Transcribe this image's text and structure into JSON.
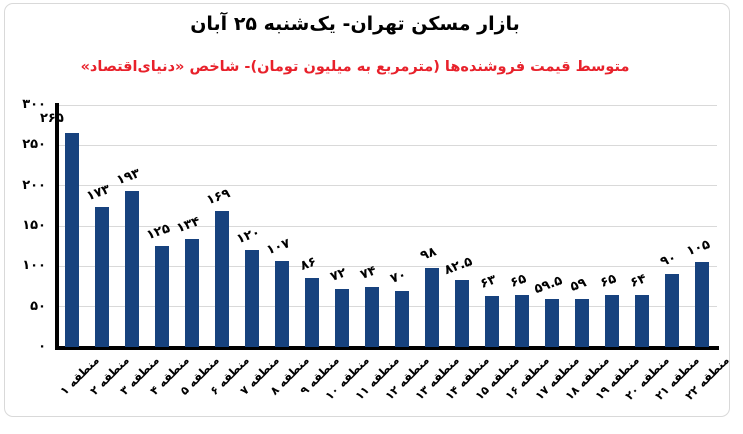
{
  "chart_data": {
    "type": "bar",
    "title": "بازار مسکن تهران- یک‌شنبه ۲۵ آبان",
    "subtitle": "متوسط قیمت فروشنده‌ها (مترمربع به میلیون تومان)- شاخص «دنیای‌اقتصاد»",
    "categories": [
      "منطقه ۱",
      "منطقه ۲",
      "منطقه ۳",
      "منطقه ۴",
      "منطقه ۵",
      "منطقه ۶",
      "منطقه ۷",
      "منطقه ۸",
      "منطقه ۹",
      "منطقه ۱۰",
      "منطقه ۱۱",
      "منطقه ۱۲",
      "منطقه ۱۳",
      "منطقه ۱۴",
      "منطقه ۱۵",
      "منطقه ۱۶",
      "منطقه ۱۷",
      "منطقه ۱۸",
      "منطقه ۱۹",
      "منطقه ۲۰",
      "منطقه ۲۱",
      "منطقه ۲۲"
    ],
    "values": [
      265,
      173,
      193,
      125,
      134,
      169,
      120,
      107,
      86,
      72,
      74,
      70,
      98,
      82.5,
      63,
      65,
      59.5,
      59,
      65,
      64,
      90,
      105
    ],
    "value_labels": [
      "۲۶۵",
      "۱۷۳",
      "۱۹۳",
      "۱۲۵",
      "۱۳۴",
      "۱۶۹",
      "۱۲۰",
      "۱۰۷",
      "۸۶",
      "۷۲",
      "۷۴",
      "۷۰",
      "۹۸",
      "۸۲.۵",
      "۶۳",
      "۶۵",
      "۵۹.۵",
      "۵۹",
      "۶۵",
      "۶۴",
      "۹۰",
      "۱۰۵"
    ],
    "y_ticks": [
      {
        "value": 0,
        "label": "۰"
      },
      {
        "value": 50,
        "label": "۵۰"
      },
      {
        "value": 100,
        "label": "۱۰۰"
      },
      {
        "value": 150,
        "label": "۱۵۰"
      },
      {
        "value": 200,
        "label": "۲۰۰"
      },
      {
        "value": 250,
        "label": "۲۵۰"
      },
      {
        "value": 300,
        "label": "۳۰۰"
      }
    ],
    "ylim": [
      0,
      300
    ],
    "grid": true,
    "legend": false,
    "xlabel": "",
    "ylabel": "",
    "bar_color": "#17427E",
    "title_color": "#000000",
    "subtitle_color": "#E8212B",
    "gridline_color": "#D9D9D9",
    "axis_color": "#000000"
  }
}
